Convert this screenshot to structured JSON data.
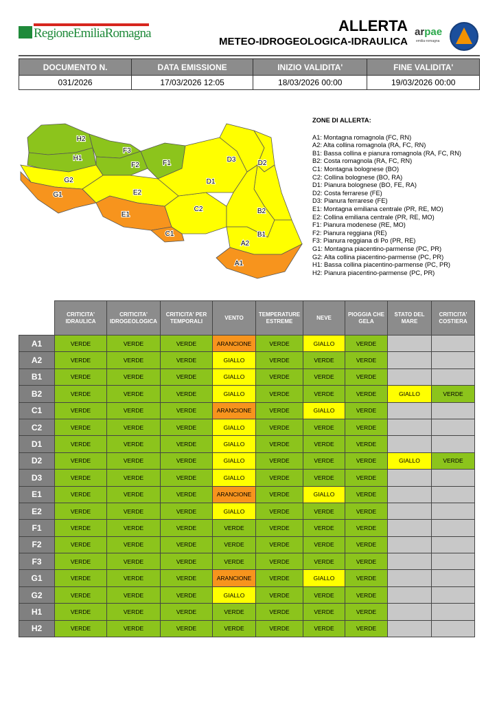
{
  "header": {
    "logo_text": "RegioneEmiliaRomagna",
    "title": "ALLERTA",
    "subtitle": "METEO-IDROGEOLOGICA-IDRAULICA",
    "arpae": "arpae",
    "arpae_sub": "emilia-romagna"
  },
  "document": {
    "headers": [
      "DOCUMENTO N.",
      "DATA EMISSIONE",
      "INIZIO VALIDITA'",
      "FINE VALIDITA'"
    ],
    "values": [
      "031/2026",
      "17/03/2026 12:05",
      "18/03/2026 00:00",
      "19/03/2026 00:00"
    ]
  },
  "colors": {
    "VERDE": "#8cc41c",
    "GIALLO": "#ffff00",
    "ARANCIONE": "#f7941d"
  },
  "map": {
    "zones": {
      "A1": "ARANCIONE",
      "A2": "GIALLO",
      "B1": "GIALLO",
      "B2": "GIALLO",
      "C1": "ARANCIONE",
      "C2": "GIALLO",
      "D1": "GIALLO",
      "D2": "GIALLO",
      "D3": "GIALLO",
      "E1": "ARANCIONE",
      "E2": "GIALLO",
      "F1": "VERDE",
      "F2": "VERDE",
      "F3": "VERDE",
      "G1": "ARANCIONE",
      "G2": "GIALLO",
      "H1": "VERDE",
      "H2": "VERDE"
    }
  },
  "legend": {
    "title": "ZONE DI ALLERTA:",
    "items": [
      "A1: Montagna romagnola (FC, RN)",
      "A2: Alta collina romagnola (RA, FC, RN)",
      "B1: Bassa collina e pianura romagnola (RA, FC, RN)",
      "B2: Costa romagnola (RA, FC, RN)",
      "C1: Montagna bolognese (BO)",
      "C2: Collina bolognese (BO, RA)",
      "D1: Pianura bolognese (BO, FE, RA)",
      "D2: Costa ferrarese (FE)",
      "D3: Pianura ferrarese (FE)",
      "E1: Montagna emiliana centrale (PR, RE, MO)",
      "E2: Collina emiliana centrale (PR, RE, MO)",
      "F1: Pianura modenese (RE, MO)",
      "F2: Pianura reggiana (RE)",
      "F3: Pianura reggiana di Po (PR, RE)",
      "G1: Montagna piacentino-parmense (PC, PR)",
      "G2: Alta collina piacentino-parmense (PC, PR)",
      "H1: Bassa collina piacentino-parmense (PC, PR)",
      "H2: Pianura piacentino-parmense (PC, PR)"
    ]
  },
  "alerts": {
    "columns": [
      "CRITICITA' IDRAULICA",
      "CRITICITA' IDROGEOLOGICA",
      "CRITICITA' PER TEMPORALI",
      "VENTO",
      "TEMPERATURE ESTREME",
      "NEVE",
      "PIOGGIA CHE GELA",
      "STATO DEL MARE",
      "CRITICITA' COSTIERA"
    ],
    "rows": [
      {
        "zone": "A1",
        "values": [
          "VERDE",
          "VERDE",
          "VERDE",
          "ARANCIONE",
          "VERDE",
          "GIALLO",
          "VERDE",
          "",
          ""
        ]
      },
      {
        "zone": "A2",
        "values": [
          "VERDE",
          "VERDE",
          "VERDE",
          "GIALLO",
          "VERDE",
          "VERDE",
          "VERDE",
          "",
          ""
        ]
      },
      {
        "zone": "B1",
        "values": [
          "VERDE",
          "VERDE",
          "VERDE",
          "GIALLO",
          "VERDE",
          "VERDE",
          "VERDE",
          "",
          ""
        ]
      },
      {
        "zone": "B2",
        "values": [
          "VERDE",
          "VERDE",
          "VERDE",
          "GIALLO",
          "VERDE",
          "VERDE",
          "VERDE",
          "GIALLO",
          "VERDE"
        ]
      },
      {
        "zone": "C1",
        "values": [
          "VERDE",
          "VERDE",
          "VERDE",
          "ARANCIONE",
          "VERDE",
          "GIALLO",
          "VERDE",
          "",
          ""
        ]
      },
      {
        "zone": "C2",
        "values": [
          "VERDE",
          "VERDE",
          "VERDE",
          "GIALLO",
          "VERDE",
          "VERDE",
          "VERDE",
          "",
          ""
        ]
      },
      {
        "zone": "D1",
        "values": [
          "VERDE",
          "VERDE",
          "VERDE",
          "GIALLO",
          "VERDE",
          "VERDE",
          "VERDE",
          "",
          ""
        ]
      },
      {
        "zone": "D2",
        "values": [
          "VERDE",
          "VERDE",
          "VERDE",
          "GIALLO",
          "VERDE",
          "VERDE",
          "VERDE",
          "GIALLO",
          "VERDE"
        ]
      },
      {
        "zone": "D3",
        "values": [
          "VERDE",
          "VERDE",
          "VERDE",
          "GIALLO",
          "VERDE",
          "VERDE",
          "VERDE",
          "",
          ""
        ]
      },
      {
        "zone": "E1",
        "values": [
          "VERDE",
          "VERDE",
          "VERDE",
          "ARANCIONE",
          "VERDE",
          "GIALLO",
          "VERDE",
          "",
          ""
        ]
      },
      {
        "zone": "E2",
        "values": [
          "VERDE",
          "VERDE",
          "VERDE",
          "GIALLO",
          "VERDE",
          "VERDE",
          "VERDE",
          "",
          ""
        ]
      },
      {
        "zone": "F1",
        "values": [
          "VERDE",
          "VERDE",
          "VERDE",
          "VERDE",
          "VERDE",
          "VERDE",
          "VERDE",
          "",
          ""
        ]
      },
      {
        "zone": "F2",
        "values": [
          "VERDE",
          "VERDE",
          "VERDE",
          "VERDE",
          "VERDE",
          "VERDE",
          "VERDE",
          "",
          ""
        ]
      },
      {
        "zone": "F3",
        "values": [
          "VERDE",
          "VERDE",
          "VERDE",
          "VERDE",
          "VERDE",
          "VERDE",
          "VERDE",
          "",
          ""
        ]
      },
      {
        "zone": "G1",
        "values": [
          "VERDE",
          "VERDE",
          "VERDE",
          "ARANCIONE",
          "VERDE",
          "GIALLO",
          "VERDE",
          "",
          ""
        ]
      },
      {
        "zone": "G2",
        "values": [
          "VERDE",
          "VERDE",
          "VERDE",
          "GIALLO",
          "VERDE",
          "VERDE",
          "VERDE",
          "",
          ""
        ]
      },
      {
        "zone": "H1",
        "values": [
          "VERDE",
          "VERDE",
          "VERDE",
          "VERDE",
          "VERDE",
          "VERDE",
          "VERDE",
          "",
          ""
        ]
      },
      {
        "zone": "H2",
        "values": [
          "VERDE",
          "VERDE",
          "VERDE",
          "VERDE",
          "VERDE",
          "VERDE",
          "VERDE",
          "",
          ""
        ]
      }
    ]
  }
}
